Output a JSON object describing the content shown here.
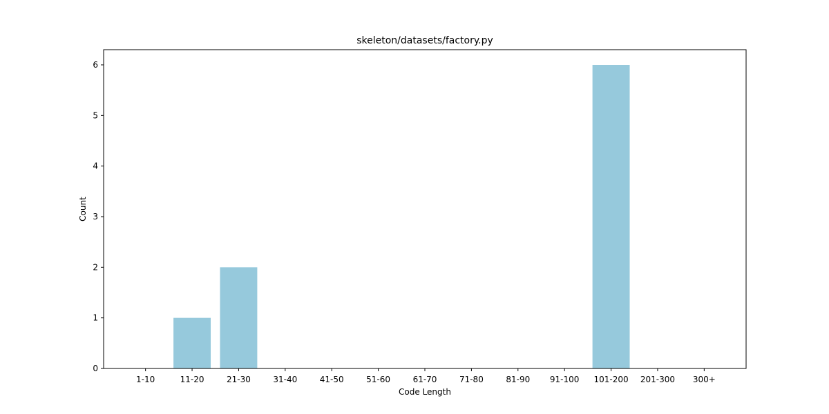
{
  "chart_data": {
    "type": "bar",
    "title": "skeleton/datasets/factory.py",
    "xlabel": "Code Length",
    "ylabel": "Count",
    "categories": [
      "1-10",
      "11-20",
      "21-30",
      "31-40",
      "41-50",
      "51-60",
      "61-70",
      "71-80",
      "81-90",
      "91-100",
      "101-200",
      "201-300",
      "300+"
    ],
    "values": [
      0,
      1,
      2,
      0,
      0,
      0,
      0,
      0,
      0,
      0,
      6,
      0,
      0
    ],
    "ylim": [
      0,
      6.3
    ],
    "yticks": [
      0,
      1,
      2,
      3,
      4,
      5,
      6
    ],
    "grid": false,
    "legend": "none",
    "bar_color": "#96c9dc"
  }
}
